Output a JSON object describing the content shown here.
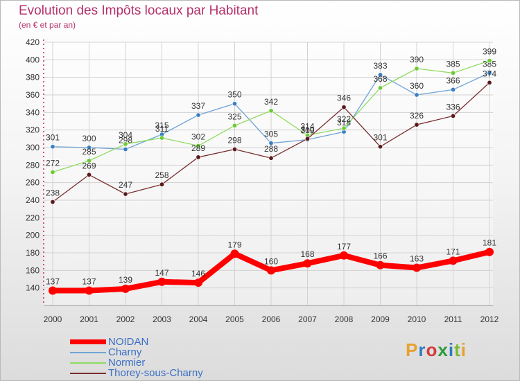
{
  "header": {
    "title": "Evolution des Impôts locaux par Habitant",
    "subtitle": "(en € et par an)"
  },
  "logo": {
    "text": "Proxiti",
    "colors": [
      "#e8a130",
      "#2f7bc0",
      "#d43b3b",
      "#2f9a3e",
      "#2f7bc0",
      "#7aba34",
      "#e8a130"
    ]
  },
  "chart_data": {
    "type": "line",
    "categories": [
      "2000",
      "2001",
      "2002",
      "2003",
      "2004",
      "2005",
      "2006",
      "2007",
      "2008",
      "2009",
      "2010",
      "2011",
      "2012"
    ],
    "ylim": [
      120,
      420
    ],
    "yticks": [
      140,
      160,
      180,
      200,
      220,
      240,
      260,
      280,
      300,
      320,
      340,
      360,
      380,
      400,
      420
    ],
    "grid": true,
    "legend_position": "bottom-left",
    "series": [
      {
        "name": "NOIDAN",
        "color": "#ff0000",
        "width": 8,
        "values": [
          137,
          137,
          139,
          147,
          146,
          179,
          160,
          168,
          177,
          166,
          163,
          171,
          181
        ]
      },
      {
        "name": "Charny",
        "color": "#6fa3d6",
        "width": 1.3,
        "values": [
          301,
          300,
          298,
          315,
          337,
          350,
          305,
          309,
          318,
          383,
          360,
          366,
          385
        ]
      },
      {
        "name": "Normier",
        "color": "#8fdb5f",
        "width": 1.3,
        "values": [
          272,
          285,
          304,
          311,
          302,
          325,
          342,
          314,
          322,
          368,
          390,
          385,
          399
        ]
      },
      {
        "name": "Thorey-sous-Charny",
        "color": "#7a2e2e",
        "width": 1.3,
        "values": [
          238,
          269,
          247,
          258,
          289,
          298,
          288,
          310,
          346,
          301,
          326,
          336,
          374
        ]
      }
    ]
  }
}
